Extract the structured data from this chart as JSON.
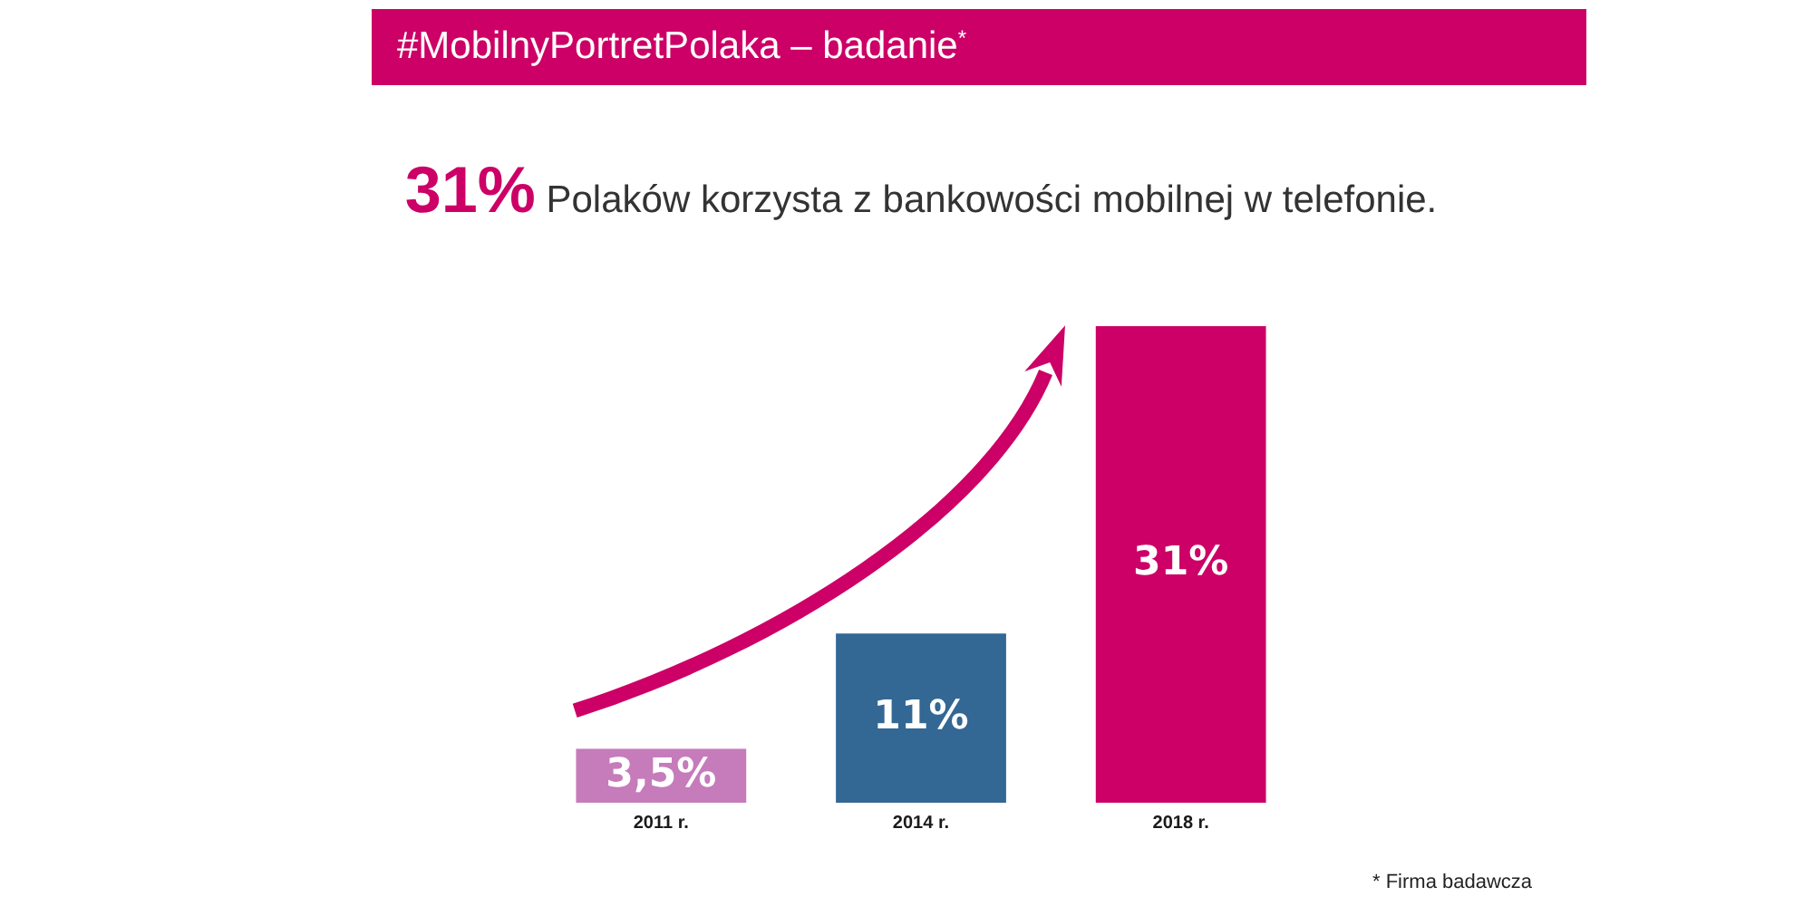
{
  "chart_data": {
    "type": "bar",
    "title": "#MobilnyPortretPolaka – badanie$^{*}$",
    "subtitle": "31% Polaków korzysta z bankowości mobilnej w telefonie.",
    "categories": [
      "2011 r.",
      "2014 r.",
      "2018 r."
    ],
    "values": [
      3.5,
      11,
      31
    ],
    "colors": [
      "#c67bbb",
      "#336794",
      "#cc0066"
    ],
    "value_labels": [
      "3,5%",
      "11%",
      "31%"
    ],
    "annotations": [
      "* Firma badawcza"
    ]
  }
}
